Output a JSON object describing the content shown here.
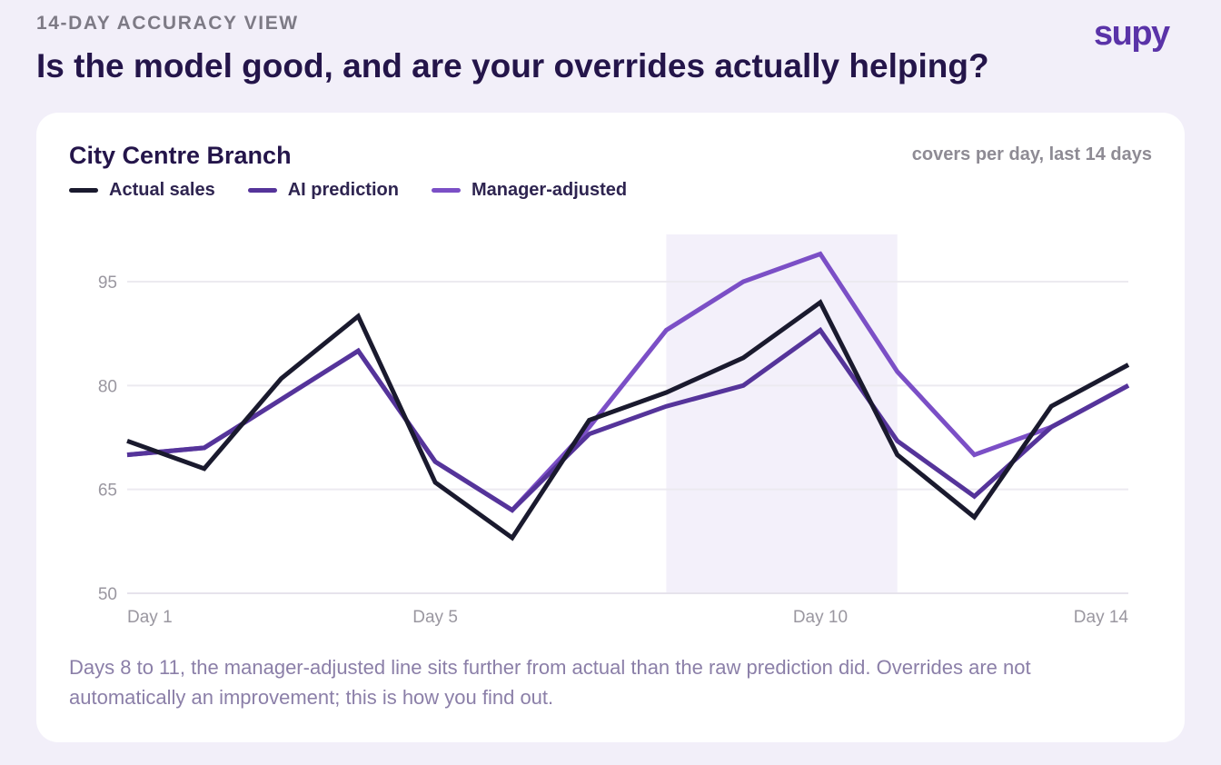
{
  "header": {
    "eyebrow": "14-DAY ACCURACY VIEW",
    "headline": "Is the model good, and are your overrides actually helping?",
    "brand": "supy"
  },
  "card": {
    "title": "City Centre Branch",
    "units": "covers per day, last 14 days",
    "note": "Days 8 to 11, the manager-adjusted line sits further from actual than the raw prediction did. Overrides are not automatically an improvement; this is how you find out."
  },
  "colors": {
    "background": "#f2eff9",
    "actual": "#1a1a2e",
    "prediction": "#55349a",
    "adjusted": "#7b4fc6",
    "highlight": "#f3f0fa"
  },
  "chart_data": {
    "type": "line",
    "x": [
      1,
      2,
      3,
      4,
      5,
      6,
      7,
      8,
      9,
      10,
      11,
      12,
      13,
      14
    ],
    "x_tick_labels": [
      {
        "x": 1,
        "label": "Day 1"
      },
      {
        "x": 5,
        "label": "Day 5"
      },
      {
        "x": 10,
        "label": "Day 10"
      },
      {
        "x": 14,
        "label": "Day 14"
      }
    ],
    "y_ticks": [
      50,
      65,
      80,
      95
    ],
    "ylim": [
      50,
      95
    ],
    "grid": true,
    "legend_position": "top-left",
    "highlight_range": [
      8,
      11
    ],
    "series": [
      {
        "key": "actual",
        "name": "Actual sales",
        "color": "#1a1a2e",
        "values": [
          72,
          68,
          81,
          90,
          66,
          58,
          75,
          79,
          84,
          92,
          70,
          61,
          77,
          83
        ]
      },
      {
        "key": "prediction",
        "name": "AI prediction",
        "color": "#55349a",
        "values": [
          70,
          71,
          78,
          85,
          69,
          62,
          73,
          77,
          80,
          88,
          72,
          64,
          74,
          80
        ]
      },
      {
        "key": "adjusted",
        "name": "Manager-adjusted",
        "color": "#7b4fc6",
        "values": [
          70,
          71,
          78,
          85,
          69,
          62,
          74,
          88,
          95,
          99,
          82,
          70,
          74,
          80
        ]
      }
    ]
  }
}
